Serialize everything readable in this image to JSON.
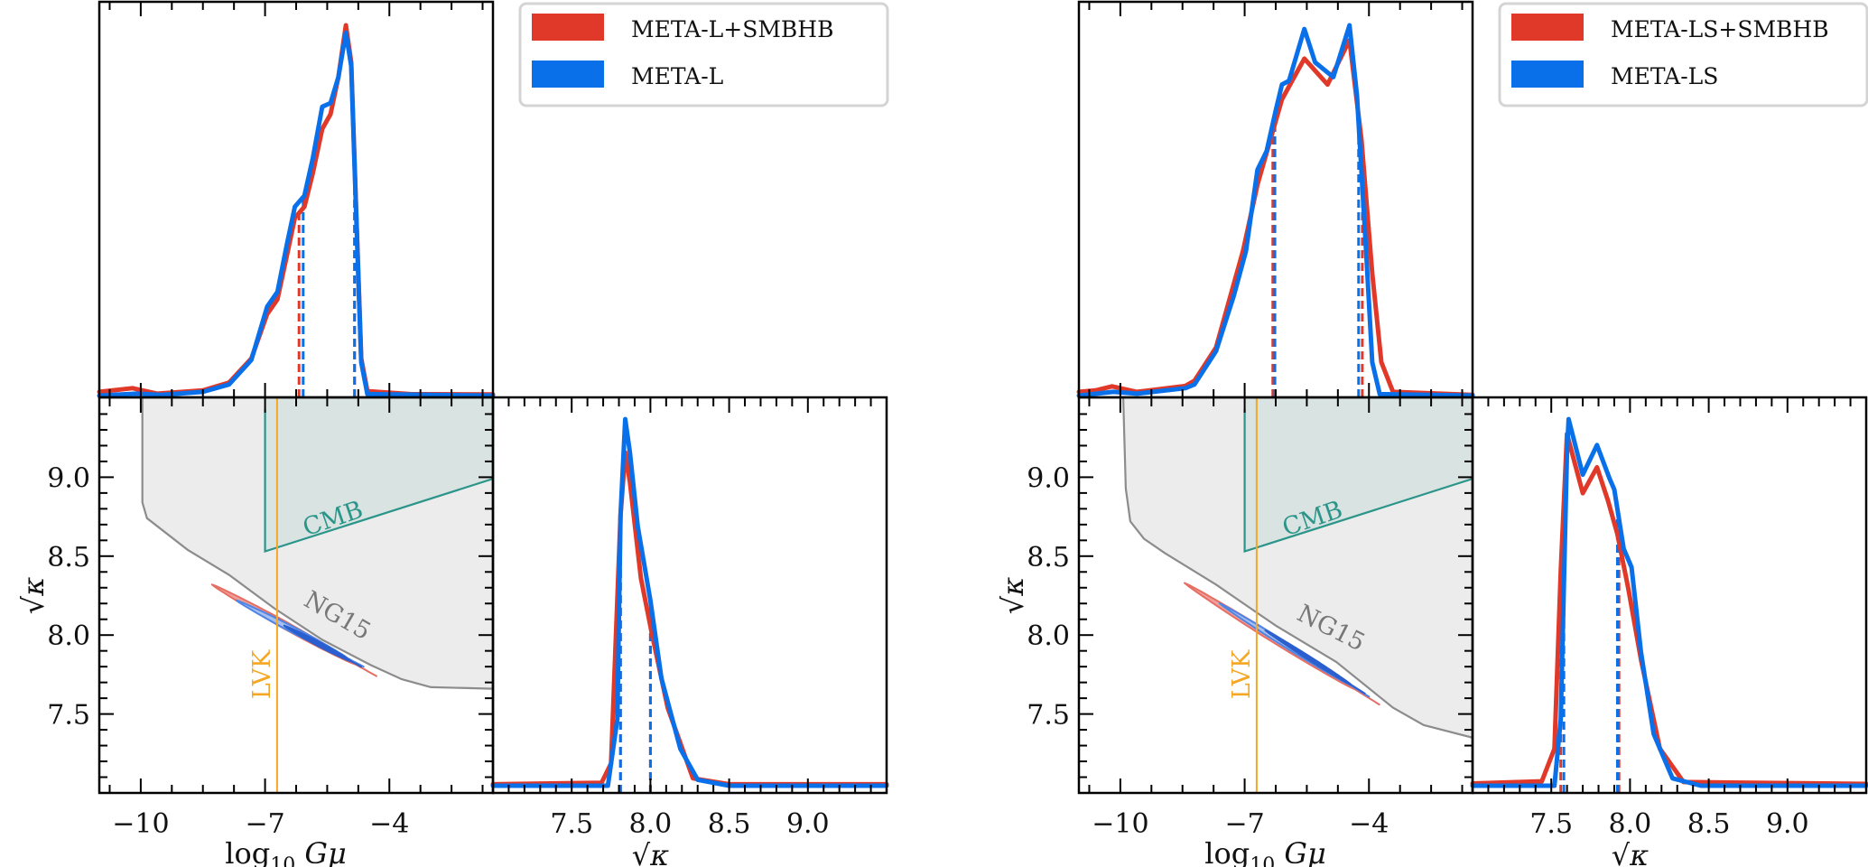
{
  "figure": {
    "colors": {
      "combined": "#e0392a",
      "single": "#0a70ea",
      "contour_outer_fill": "#eea19a",
      "contour_outer_edge": "#e66e63",
      "contour_mid_fill": "#a9bfee",
      "contour_mid_edge": "#4f86e6",
      "contour_inner_fill": "#2b5fcf",
      "ng15_fill": "#ececec",
      "ng15_edge": "#8c8c8c",
      "cmb_fill": "#d5e2e1",
      "cmb_edge": "#2b958a",
      "lvk": "#f5a623"
    }
  },
  "chart_data": [
    {
      "panel": "left",
      "type": "corner",
      "legend": [
        "META-L+SMBHB",
        "META-L"
      ],
      "legend_placement": "top-right",
      "x_param": {
        "label": "log10 Gμ",
        "label_main": "log",
        "label_sub": "10",
        "label_tail": " Gμ",
        "range": [
          -11.0,
          -1.5
        ],
        "ticks": [
          -10,
          -7,
          -4
        ],
        "tick_labels": [
          "−10",
          "−7",
          "−4"
        ],
        "minor_step": 0.75
      },
      "y_param": {
        "label": "√κ",
        "range": [
          7.0,
          9.5
        ],
        "ticks": [
          7.5,
          8.0,
          8.5,
          9.0
        ],
        "tick_labels": [
          "7.5",
          "8.0",
          "8.5",
          "9.0"
        ],
        "minor_step": 0.1
      },
      "gmu_posterior": {
        "combined": [
          [
            -11.0,
            0.01
          ],
          [
            -10.2,
            0.02
          ],
          [
            -9.6,
            0.005
          ],
          [
            -8.5,
            0.014
          ],
          [
            -7.87,
            0.035
          ],
          [
            -7.33,
            0.1
          ],
          [
            -6.95,
            0.22
          ],
          [
            -6.7,
            0.26
          ],
          [
            -6.47,
            0.38
          ],
          [
            -6.28,
            0.48
          ],
          [
            -6.05,
            0.51
          ],
          [
            -5.85,
            0.6
          ],
          [
            -5.62,
            0.72
          ],
          [
            -5.42,
            0.76
          ],
          [
            -5.23,
            0.86
          ],
          [
            -5.05,
            1.0
          ],
          [
            -4.92,
            0.9
          ],
          [
            -4.8,
            0.5
          ],
          [
            -4.68,
            0.1
          ],
          [
            -4.53,
            0.012
          ],
          [
            -3.5,
            0.004
          ],
          [
            -1.5,
            0.003
          ]
        ],
        "single": [
          [
            -11.0,
            0.0
          ],
          [
            -10.1,
            0.005
          ],
          [
            -9.5,
            0.002
          ],
          [
            -8.5,
            0.01
          ],
          [
            -7.87,
            0.03
          ],
          [
            -7.33,
            0.096
          ],
          [
            -6.95,
            0.24
          ],
          [
            -6.7,
            0.28
          ],
          [
            -6.47,
            0.41
          ],
          [
            -6.28,
            0.51
          ],
          [
            -6.05,
            0.54
          ],
          [
            -5.85,
            0.64
          ],
          [
            -5.62,
            0.78
          ],
          [
            -5.42,
            0.79
          ],
          [
            -5.23,
            0.86
          ],
          [
            -5.05,
            0.98
          ],
          [
            -4.92,
            0.89
          ],
          [
            -4.8,
            0.49
          ],
          [
            -4.68,
            0.09
          ],
          [
            -4.53,
            0.004
          ],
          [
            -1.5,
            0.0
          ]
        ],
        "intervals": {
          "combined": [
            -6.18,
            -4.84
          ],
          "single": [
            -6.08,
            -4.84
          ]
        }
      },
      "kappa_posterior": {
        "combined": [
          [
            7.0,
            0.004
          ],
          [
            7.69,
            0.008
          ],
          [
            7.75,
            0.06
          ],
          [
            7.81,
            0.73
          ],
          [
            7.84,
            0.9
          ],
          [
            7.87,
            0.82
          ],
          [
            7.94,
            0.56
          ],
          [
            8.01,
            0.41
          ],
          [
            8.11,
            0.21
          ],
          [
            8.27,
            0.02
          ],
          [
            8.5,
            0.004
          ],
          [
            9.5,
            0.004
          ]
        ],
        "single": [
          [
            7.0,
            0.0
          ],
          [
            7.73,
            0.0
          ],
          [
            7.79,
            0.18
          ],
          [
            7.81,
            0.73
          ],
          [
            7.84,
            0.99
          ],
          [
            7.87,
            0.9
          ],
          [
            7.92,
            0.7
          ],
          [
            8.0,
            0.5
          ],
          [
            8.07,
            0.29
          ],
          [
            8.19,
            0.1
          ],
          [
            8.3,
            0.016
          ],
          [
            8.5,
            0.0
          ],
          [
            9.5,
            0.0
          ]
        ],
        "intervals": {
          "combined": [
            7.81,
            8.0
          ],
          "single": [
            7.81,
            8.0
          ]
        }
      },
      "contours_2d": {
        "combined_outer": {
          "start": [
            -8.28,
            8.32
          ],
          "end": [
            -4.31,
            7.74
          ],
          "half_width": 0.022
        },
        "single_mid": {
          "start": [
            -7.69,
            8.22
          ],
          "end": [
            -4.62,
            7.8
          ],
          "half_width": 0.018
        },
        "single_inner": {
          "start": [
            -6.54,
            8.06
          ],
          "end": [
            -4.68,
            7.8
          ],
          "half_width": 0.013
        }
      },
      "constraints": {
        "ng15": {
          "label": "NG15",
          "boundary": [
            [
              -9.96,
              9.5
            ],
            [
              -9.96,
              8.84
            ],
            [
              -9.85,
              8.74
            ],
            [
              -8.87,
              8.54
            ],
            [
              -7.86,
              8.38
            ],
            [
              -6.78,
              8.17
            ],
            [
              -5.62,
              7.97
            ],
            [
              -4.45,
              7.81
            ],
            [
              -3.7,
              7.72
            ],
            [
              -3.0,
              7.67
            ],
            [
              -1.5,
              7.66
            ]
          ]
        },
        "cmb": {
          "label": "CMB",
          "boundary": [
            [
              -7.0,
              9.5
            ],
            [
              -7.0,
              8.53
            ],
            [
              -1.5,
              8.99
            ],
            [
              -1.5,
              9.5
            ]
          ]
        },
        "lvk": {
          "label": "LVK",
          "gmu": -6.71
        }
      }
    },
    {
      "panel": "right",
      "type": "corner",
      "legend": [
        "META-LS+SMBHB",
        "META-LS"
      ],
      "legend_placement": "top-right",
      "x_param": {
        "label": "log10 Gμ",
        "label_main": "log",
        "label_sub": "10",
        "label_tail": " Gμ",
        "range": [
          -11.0,
          -1.5
        ],
        "ticks": [
          -10,
          -7,
          -4
        ],
        "tick_labels": [
          "−10",
          "−7",
          "−4"
        ],
        "minor_step": 0.75
      },
      "y_param": {
        "label": "√κ",
        "range": [
          7.0,
          9.5
        ],
        "ticks": [
          7.5,
          8.0,
          8.5,
          9.0
        ],
        "tick_labels": [
          "7.5",
          "8.0",
          "8.5",
          "9.0"
        ],
        "minor_step": 0.1
      },
      "gmu_posterior": {
        "combined": [
          [
            -11.0,
            0.01
          ],
          [
            -10.6,
            0.014
          ],
          [
            -10.2,
            0.025
          ],
          [
            -9.6,
            0.01
          ],
          [
            -8.43,
            0.026
          ],
          [
            -8.21,
            0.04
          ],
          [
            -7.69,
            0.13
          ],
          [
            -7.04,
            0.39
          ],
          [
            -6.69,
            0.57
          ],
          [
            -6.1,
            0.8
          ],
          [
            -5.56,
            0.91
          ],
          [
            -5.0,
            0.84
          ],
          [
            -4.47,
            0.96
          ],
          [
            -4.18,
            0.69
          ],
          [
            -3.92,
            0.33
          ],
          [
            -3.7,
            0.09
          ],
          [
            -3.42,
            0.01
          ],
          [
            -1.5,
            0.002
          ]
        ],
        "single": [
          [
            -11.0,
            0.0
          ],
          [
            -10.17,
            0.01
          ],
          [
            -9.6,
            0.005
          ],
          [
            -8.43,
            0.02
          ],
          [
            -8.21,
            0.03
          ],
          [
            -7.69,
            0.12
          ],
          [
            -7.26,
            0.27
          ],
          [
            -6.97,
            0.39
          ],
          [
            -6.69,
            0.61
          ],
          [
            -6.47,
            0.66
          ],
          [
            -6.25,
            0.77
          ],
          [
            -6.1,
            0.84
          ],
          [
            -5.93,
            0.85
          ],
          [
            -5.56,
            0.99
          ],
          [
            -5.3,
            0.9
          ],
          [
            -4.86,
            0.86
          ],
          [
            -4.47,
            1.0
          ],
          [
            -4.29,
            0.81
          ],
          [
            -4.07,
            0.39
          ],
          [
            -3.92,
            0.09
          ],
          [
            -3.74,
            0.004
          ],
          [
            -1.5,
            0.0
          ]
        ],
        "intervals": {
          "combined": [
            -6.32,
            -4.16
          ],
          "single": [
            -6.27,
            -4.25
          ]
        }
      },
      "kappa_posterior": {
        "combined": [
          [
            7.0,
            0.006
          ],
          [
            7.44,
            0.012
          ],
          [
            7.52,
            0.1
          ],
          [
            7.56,
            0.58
          ],
          [
            7.6,
            0.95
          ],
          [
            7.7,
            0.79
          ],
          [
            7.79,
            0.86
          ],
          [
            7.86,
            0.77
          ],
          [
            7.92,
            0.68
          ],
          [
            7.99,
            0.53
          ],
          [
            8.07,
            0.34
          ],
          [
            8.19,
            0.1
          ],
          [
            8.34,
            0.01
          ],
          [
            9.5,
            0.005
          ]
        ],
        "single": [
          [
            7.0,
            0.0
          ],
          [
            7.52,
            0.0
          ],
          [
            7.56,
            0.18
          ],
          [
            7.6,
            0.9
          ],
          [
            7.61,
            0.99
          ],
          [
            7.7,
            0.84
          ],
          [
            7.79,
            0.92
          ],
          [
            7.87,
            0.83
          ],
          [
            7.9,
            0.8
          ],
          [
            7.96,
            0.64
          ],
          [
            8.01,
            0.59
          ],
          [
            8.07,
            0.36
          ],
          [
            8.15,
            0.14
          ],
          [
            8.27,
            0.02
          ],
          [
            8.45,
            0.0
          ],
          [
            9.5,
            0.0
          ]
        ],
        "intervals": {
          "combined": [
            7.56,
            7.93
          ],
          "single": [
            7.58,
            7.92
          ]
        }
      },
      "contours_2d": {
        "combined_outer": {
          "start": [
            -8.45,
            8.33
          ],
          "end": [
            -3.75,
            7.56
          ],
          "half_width": 0.022
        },
        "single_mid": {
          "start": [
            -7.6,
            8.2
          ],
          "end": [
            -4.0,
            7.61
          ],
          "half_width": 0.016
        },
        "single_inner": {
          "start": [
            -6.5,
            8.03
          ],
          "end": [
            -4.1,
            7.63
          ],
          "half_width": 0.011
        }
      },
      "constraints": {
        "ng15": {
          "label": "NG15",
          "boundary": [
            [
              -9.93,
              9.5
            ],
            [
              -9.87,
              8.93
            ],
            [
              -9.76,
              8.72
            ],
            [
              -9.43,
              8.61
            ],
            [
              -8.93,
              8.52
            ],
            [
              -7.69,
              8.32
            ],
            [
              -6.25,
              8.06
            ],
            [
              -4.79,
              7.83
            ],
            [
              -3.42,
              7.54
            ],
            [
              -2.68,
              7.43
            ],
            [
              -1.5,
              7.35
            ]
          ]
        },
        "cmb": {
          "label": "CMB",
          "boundary": [
            [
              -7.0,
              9.5
            ],
            [
              -7.0,
              8.53
            ],
            [
              -1.5,
              8.99
            ],
            [
              -1.5,
              9.5
            ]
          ]
        },
        "lvk": {
          "label": "LVK",
          "gmu": -6.71
        }
      }
    }
  ]
}
